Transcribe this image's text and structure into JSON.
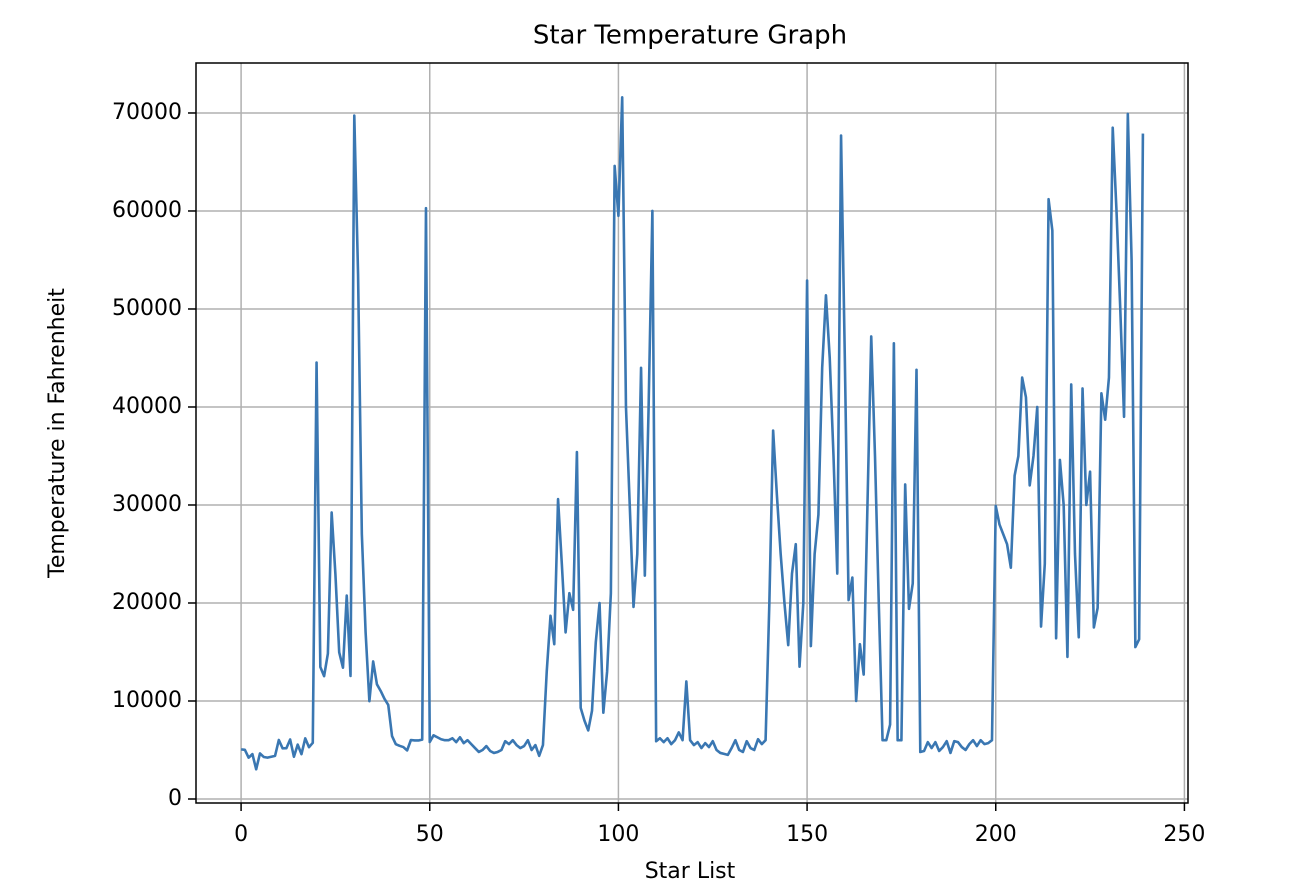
{
  "chart_data": {
    "type": "line",
    "title": "Star Temperature Graph",
    "x_label": "Star List",
    "y_label": "Temperature in Fahrenheit",
    "x": [
      0,
      1,
      2,
      3,
      4,
      5,
      6,
      7,
      8,
      9,
      10,
      11,
      12,
      13,
      14,
      15,
      16,
      17,
      18,
      19,
      20,
      21,
      22,
      23,
      24,
      25,
      26,
      27,
      28,
      29,
      30,
      31,
      32,
      33,
      34,
      35,
      36,
      37,
      38,
      39,
      40,
      41,
      42,
      43,
      44,
      45,
      46,
      47,
      48,
      49,
      50,
      51,
      52,
      53,
      54,
      55,
      56,
      57,
      58,
      59,
      60,
      61,
      62,
      63,
      64,
      65,
      66,
      67,
      68,
      69,
      70,
      71,
      72,
      73,
      74,
      75,
      76,
      77,
      78,
      79,
      80,
      81,
      82,
      83,
      84,
      85,
      86,
      87,
      88,
      89,
      90,
      91,
      92,
      93,
      94,
      95,
      96,
      97,
      98,
      99,
      100,
      101,
      102,
      103,
      104,
      105,
      106,
      107,
      108,
      109,
      110,
      111,
      112,
      113,
      114,
      115,
      116,
      117,
      118,
      119,
      120,
      121,
      122,
      123,
      124,
      125,
      126,
      127,
      128,
      129,
      130,
      131,
      132,
      133,
      134,
      135,
      136,
      137,
      138,
      139,
      140,
      141,
      142,
      143,
      144,
      145,
      146,
      147,
      148,
      149,
      150,
      151,
      152,
      153,
      154,
      155,
      156,
      157,
      158,
      159,
      160,
      161,
      162,
      163,
      164,
      165,
      166,
      167,
      168,
      169,
      170,
      171,
      172,
      173,
      174,
      175,
      176,
      177,
      178,
      179,
      180,
      181,
      182,
      183,
      184,
      185,
      186,
      187,
      188,
      189,
      190,
      191,
      192,
      193,
      194,
      195,
      196,
      197,
      198,
      199,
      200,
      201,
      202,
      203,
      204,
      205,
      206,
      207,
      208,
      209,
      210,
      211,
      212,
      213,
      214,
      215,
      216,
      217,
      218,
      219,
      220,
      221,
      222,
      223,
      224,
      225,
      226,
      227,
      228,
      229,
      230,
      231,
      232,
      233,
      234,
      235,
      236,
      237,
      238,
      239
    ],
    "values": [
      5063,
      5016,
      4220,
      4580,
      3031,
      4652,
      4287,
      4220,
      4310,
      4400,
      6020,
      5173,
      5182,
      6071,
      4310,
      5552,
      4578,
      6186,
      5286,
      5734,
      44540,
      13473,
      12536,
      14840,
      29240,
      22922,
      14966,
      13400,
      20762,
      12554,
      69740,
      53540,
      27037,
      16999,
      9980,
      14034,
      11703,
      11024,
      10225,
      9597,
      6427,
      5597,
      5427,
      5300,
      4955,
      6020,
      5975,
      5973,
      6065,
      60290,
      5822,
      6500,
      6300,
      6100,
      6000,
      6000,
      6200,
      5800,
      6300,
      5700,
      6000,
      5600,
      5200,
      4800,
      5000,
      5400,
      4900,
      4700,
      4800,
      5000,
      5900,
      5600,
      6000,
      5500,
      5200,
      5400,
      6000,
      5000,
      5500,
      4400,
      5500,
      13000,
      18700,
      15800,
      30600,
      24000,
      17000,
      21000,
      19300,
      35400,
      9300,
      8000,
      7000,
      9000,
      16000,
      20000,
      8800,
      13000,
      21000,
      64600,
      59500,
      71600,
      40000,
      30000,
      19600,
      25000,
      44000,
      22800,
      40000,
      60000,
      5900,
      6200,
      5800,
      6200,
      5600,
      6000,
      6800,
      6000,
      12000,
      6000,
      5500,
      5800,
      5200,
      5700,
      5300,
      5900,
      5000,
      4700,
      4600,
      4500,
      5200,
      6000,
      5000,
      4800,
      5900,
      5200,
      5000,
      6100,
      5600,
      6000,
      20000,
      37600,
      31000,
      25000,
      20000,
      15700,
      23000,
      26000,
      13500,
      20000,
      52900,
      15600,
      25000,
      29000,
      44000,
      51400,
      45000,
      35000,
      23000,
      67700,
      45000,
      20300,
      22600,
      10000,
      15800,
      12700,
      30000,
      47200,
      35000,
      20000,
      6000,
      6000,
      7600,
      46500,
      6000,
      6000,
      32100,
      19400,
      22000,
      43800,
      4800,
      4900,
      5800,
      5200,
      5800,
      4900,
      5300,
      5900,
      4700,
      5900,
      5800,
      5300,
      5000,
      5600,
      6000,
      5400,
      6000,
      5600,
      5700,
      6000,
      29900,
      28000,
      27000,
      26000,
      23600,
      33000,
      35000,
      43000,
      41000,
      32000,
      35000,
      40000,
      17600,
      24000,
      61200,
      58000,
      16400,
      34600,
      30000,
      14500,
      42300,
      25000,
      16500,
      41900,
      30000,
      33400,
      17500,
      19500,
      41400,
      38700,
      43000,
      68500,
      60000,
      50000,
      39000,
      69900,
      55000,
      15500,
      16300,
      67900
    ],
    "color": "#3a77b2",
    "xlim": [
      -11.95,
      250.95
    ],
    "xticks": [
      0,
      50,
      100,
      150,
      200,
      250
    ],
    "ylim": [
      -408,
      75100
    ],
    "yticks": [
      0,
      10000,
      20000,
      30000,
      40000,
      50000,
      60000,
      70000
    ],
    "grid": true
  }
}
